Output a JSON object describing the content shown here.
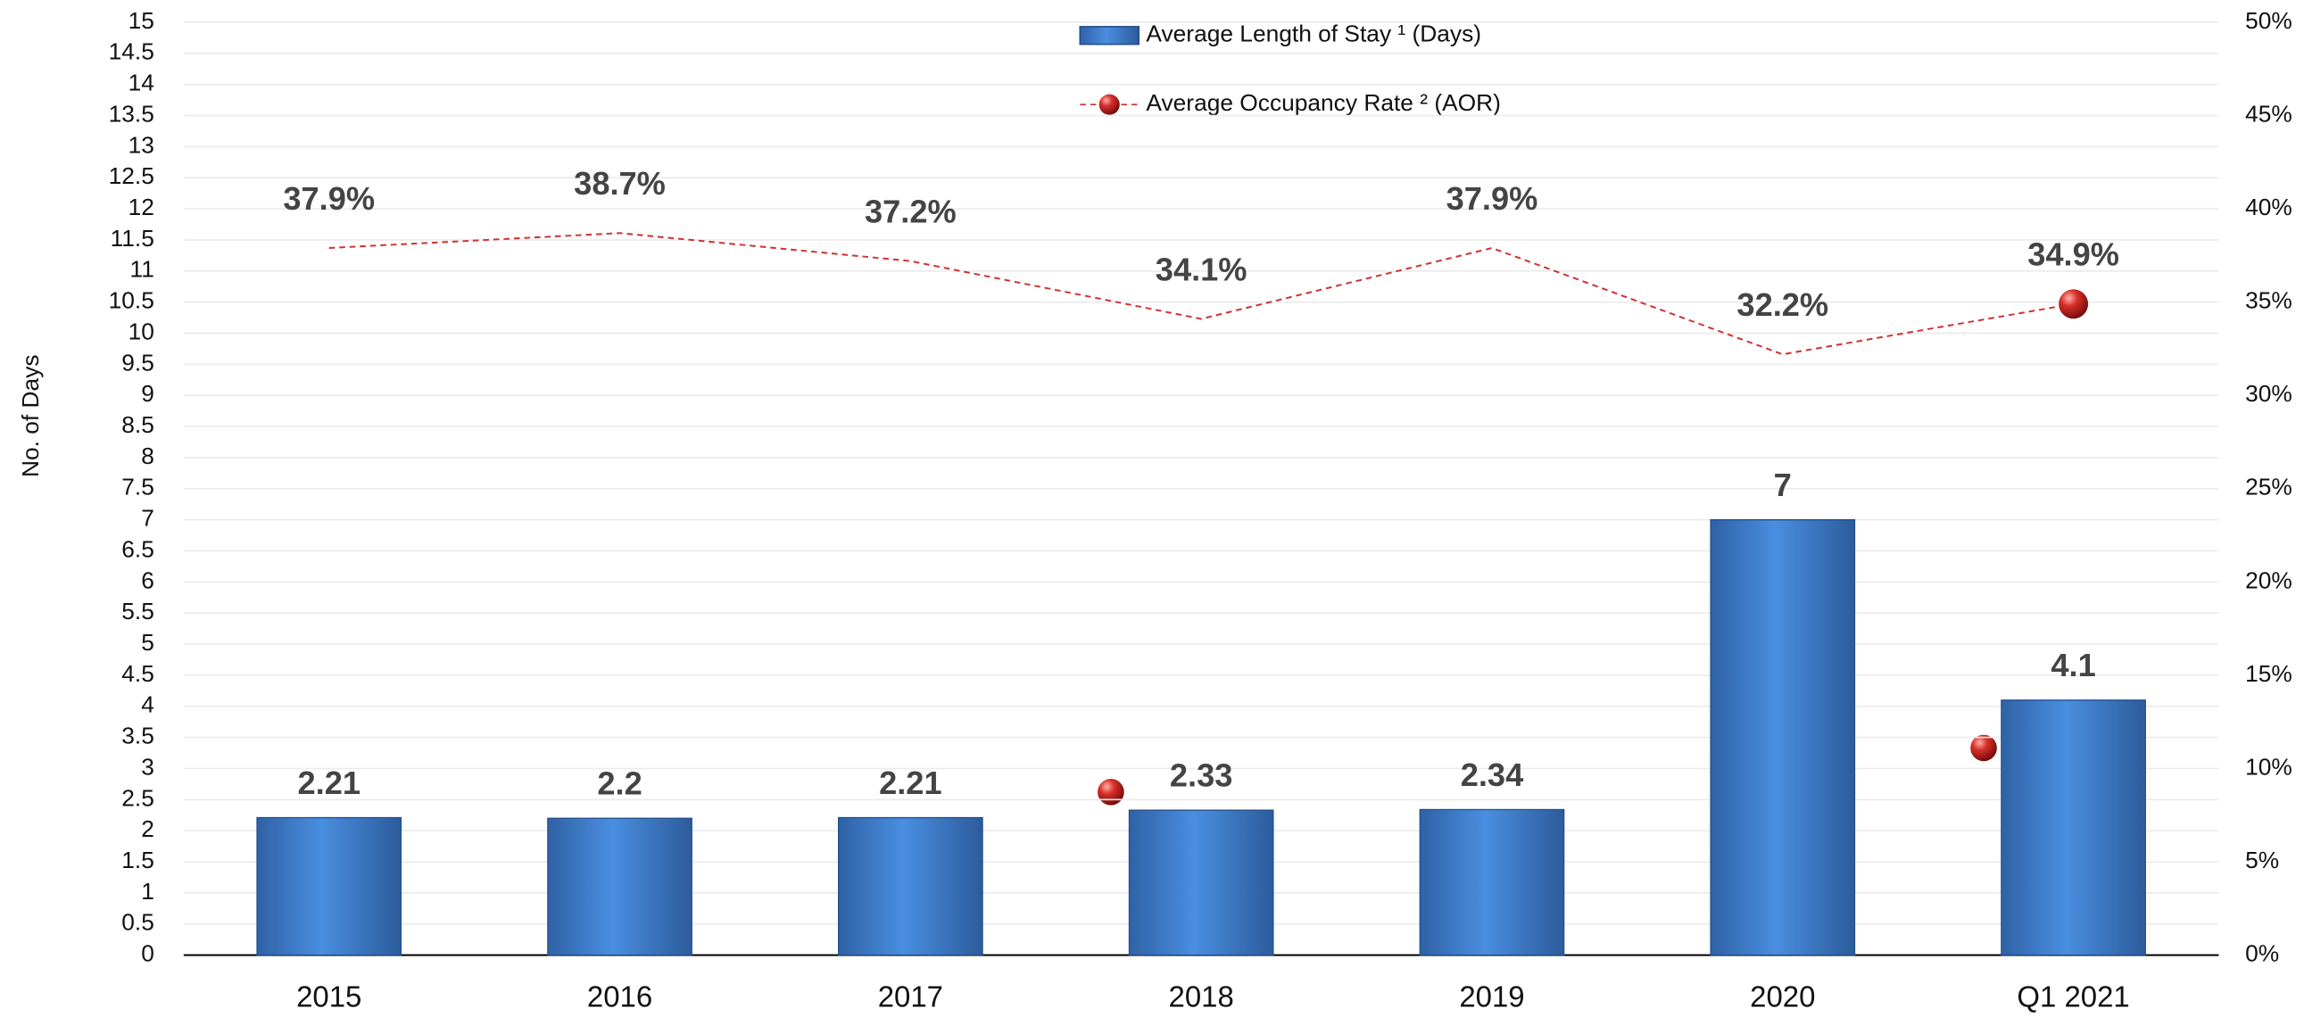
{
  "chart_data": {
    "type": "bar",
    "categories": [
      "2015",
      "2016",
      "2017",
      "2018",
      "2019",
      "2020",
      "Q1 2021"
    ],
    "y_axis_label": "No. of Days",
    "series": [
      {
        "name": "Average Length of Stay ¹ (Days)",
        "color": "#3f7fcf",
        "values": [
          2.21,
          2.2,
          2.21,
          2.33,
          2.34,
          7,
          4.1
        ]
      },
      {
        "name": "Average Occupancy Rate ² (AOR)",
        "color": "#d03030",
        "axis": "y2",
        "values": [
          37.9,
          38.7,
          37.2,
          34.1,
          37.9,
          32.2,
          34.9
        ],
        "value_labels": [
          "37.9%",
          "38.7%",
          "37.2%",
          "34.1%",
          "37.9%",
          "32.2%",
          "34.9%"
        ]
      }
    ],
    "ylim": [
      0,
      15
    ],
    "yticks": [
      0,
      0.5,
      1,
      1.5,
      2,
      2.5,
      3,
      3.5,
      4,
      4.5,
      5,
      5.5,
      6,
      6.5,
      7,
      7.5,
      8,
      8.5,
      9,
      9.5,
      10,
      10.5,
      11,
      11.5,
      12,
      12.5,
      13,
      13.5,
      14,
      14.5,
      15
    ],
    "y2lim": [
      0,
      50
    ],
    "y2ticks": [
      {
        "value": 0,
        "label": "0%"
      },
      {
        "value": 5,
        "label": "5%"
      },
      {
        "value": 10,
        "label": "10%"
      },
      {
        "value": 15,
        "label": "15%"
      },
      {
        "value": 20,
        "label": "20%"
      },
      {
        "value": 25,
        "label": "25%"
      },
      {
        "value": 30,
        "label": "30%"
      },
      {
        "value": 35,
        "label": "35%"
      },
      {
        "value": 40,
        "label": "40%"
      },
      {
        "value": 45,
        "label": "45%"
      },
      {
        "value": 50,
        "label": "50%"
      }
    ],
    "grid": true
  }
}
